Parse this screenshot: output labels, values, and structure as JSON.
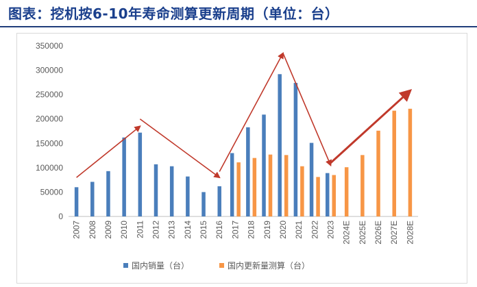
{
  "title": "图表：挖机按6-10年寿命测算更新周期（单位：台）",
  "chart_data": {
    "type": "bar",
    "categories": [
      "2007",
      "2008",
      "2009",
      "2010",
      "2011",
      "2012",
      "2013",
      "2014",
      "2015",
      "2016",
      "2017",
      "2018",
      "2019",
      "2020",
      "2021",
      "2022",
      "2023",
      "2024E",
      "2025E",
      "2026E",
      "2027E",
      "2028E"
    ],
    "series": [
      {
        "name": "国内销量（台）",
        "color": "#4a7ebb",
        "values": [
          60000,
          71000,
          93000,
          162000,
          172000,
          107000,
          103000,
          82000,
          50000,
          62000,
          130000,
          183000,
          209000,
          292000,
          274000,
          151000,
          89000,
          null,
          null,
          null,
          null,
          null
        ]
      },
      {
        "name": "国内更新量测算（台）",
        "color": "#f79646",
        "values": [
          null,
          null,
          null,
          null,
          null,
          null,
          null,
          null,
          null,
          null,
          111000,
          120000,
          127000,
          126000,
          103000,
          81000,
          85000,
          101000,
          126000,
          176000,
          217000,
          221000
        ]
      }
    ],
    "yticks": [
      "0",
      "50000",
      "100000",
      "150000",
      "200000",
      "250000",
      "300000",
      "350000"
    ],
    "ylim": [
      0,
      350000
    ],
    "grid": false,
    "legend": "bottom",
    "trend_arrows": [
      {
        "from": [
          "2007",
          80000
        ],
        "to": [
          "2011",
          185000
        ]
      },
      {
        "from": [
          "2011",
          200000
        ],
        "to": [
          "2016",
          80000
        ]
      },
      {
        "from": [
          "2016",
          92000
        ],
        "to": [
          "2020",
          335000
        ]
      },
      {
        "from": [
          "2020",
          335000
        ],
        "to": [
          "2023",
          105000
        ]
      },
      {
        "from": [
          "2023",
          110000
        ],
        "to": [
          "2028E",
          258000
        ]
      }
    ],
    "arrow_color": "#c0392b"
  }
}
